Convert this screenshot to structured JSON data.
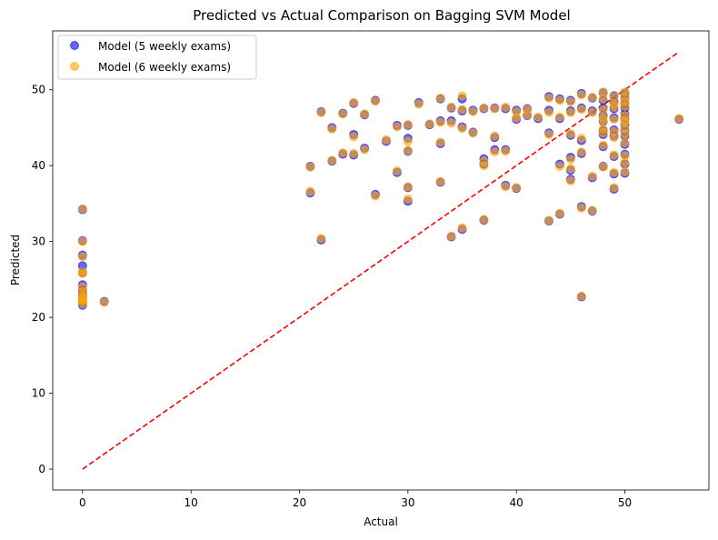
{
  "chart_data": {
    "type": "scatter",
    "title": "Predicted vs Actual Comparison on Bagging SVM Model",
    "xlabel": "Actual",
    "ylabel": "Predicted",
    "xlim": [
      -2.75,
      57.75
    ],
    "ylim": [
      -2.75,
      57.75
    ],
    "xticks": [
      0,
      10,
      20,
      30,
      40,
      50
    ],
    "yticks": [
      0,
      10,
      20,
      30,
      40,
      50
    ],
    "grid": false,
    "legend_position": "top-left",
    "reference_line": {
      "x": [
        0,
        55
      ],
      "y": [
        0,
        55
      ],
      "style": "dashed",
      "color": "#ff0000"
    },
    "series": [
      {
        "name": "Model (5 weekly exams)",
        "color": "#0000ff",
        "alpha": 0.6,
        "x": [
          0,
          0,
          0,
          0,
          0,
          0,
          0,
          0,
          0,
          0,
          0,
          0,
          2,
          21,
          21,
          22,
          22,
          23,
          23,
          24,
          24,
          25,
          25,
          25,
          26,
          26,
          27,
          27,
          28,
          29,
          29,
          30,
          30,
          30,
          30,
          30,
          31,
          32,
          33,
          33,
          33,
          33,
          34,
          34,
          34,
          35,
          35,
          35,
          35,
          36,
          36,
          37,
          37,
          37,
          37,
          38,
          38,
          38,
          39,
          39,
          39,
          40,
          40,
          40,
          41,
          41,
          42,
          43,
          43,
          43,
          43,
          44,
          44,
          44,
          44,
          45,
          45,
          45,
          45,
          45,
          45,
          46,
          46,
          46,
          46,
          46,
          46,
          47,
          47,
          47,
          47,
          48,
          48,
          48,
          48,
          48,
          48,
          48,
          48,
          48,
          49,
          49,
          49,
          49,
          49,
          49,
          49,
          49,
          49,
          50,
          50,
          50,
          50,
          50,
          50,
          50,
          50,
          50,
          50,
          50,
          50,
          50,
          55
        ],
        "y": [
          34.2,
          30.1,
          28.2,
          26.8,
          25.9,
          24.3,
          23.6,
          23.1,
          22.8,
          22.5,
          22.0,
          21.6,
          22.1,
          39.9,
          36.4,
          47.1,
          30.2,
          45.0,
          40.6,
          46.9,
          41.5,
          48.2,
          44.1,
          41.4,
          46.7,
          42.3,
          48.6,
          36.2,
          43.2,
          45.3,
          39.1,
          45.3,
          43.6,
          41.9,
          37.1,
          35.3,
          48.3,
          45.4,
          48.8,
          45.9,
          42.9,
          37.8,
          47.6,
          45.9,
          30.6,
          48.8,
          47.2,
          45.1,
          31.6,
          47.3,
          44.4,
          47.5,
          40.9,
          40.2,
          32.8,
          47.6,
          43.7,
          42.1,
          47.5,
          42.1,
          37.4,
          47.3,
          46.1,
          37.0,
          47.5,
          46.6,
          46.2,
          49.1,
          47.3,
          44.3,
          32.7,
          48.8,
          46.2,
          40.2,
          33.6,
          48.6,
          47.2,
          44.0,
          41.1,
          39.4,
          38.2,
          49.5,
          47.6,
          43.3,
          41.6,
          34.6,
          22.7,
          48.9,
          47.2,
          38.4,
          34.0,
          49.6,
          48.6,
          47.6,
          46.6,
          45.8,
          44.6,
          44.1,
          42.5,
          39.9,
          49.2,
          48.4,
          47.5,
          46.3,
          44.7,
          43.9,
          41.2,
          38.9,
          36.9,
          49.5,
          48.9,
          48.2,
          47.6,
          46.8,
          46.2,
          45.4,
          44.6,
          43.9,
          42.8,
          41.5,
          40.2,
          39.0,
          46.1
        ]
      },
      {
        "name": "Model (6 weekly exams)",
        "color": "#ffa500",
        "alpha": 0.6,
        "x": [
          0,
          0,
          0,
          0,
          0,
          0,
          0,
          0,
          0,
          0,
          0,
          0,
          2,
          21,
          21,
          22,
          22,
          23,
          23,
          24,
          24,
          25,
          25,
          25,
          26,
          26,
          27,
          27,
          28,
          29,
          29,
          30,
          30,
          30,
          30,
          30,
          31,
          32,
          33,
          33,
          33,
          33,
          34,
          34,
          34,
          35,
          35,
          35,
          35,
          36,
          36,
          37,
          37,
          37,
          37,
          38,
          38,
          38,
          39,
          39,
          39,
          40,
          40,
          40,
          41,
          41,
          42,
          43,
          43,
          43,
          43,
          44,
          44,
          44,
          44,
          45,
          45,
          45,
          45,
          45,
          45,
          46,
          46,
          46,
          46,
          46,
          46,
          47,
          47,
          47,
          47,
          48,
          48,
          48,
          48,
          48,
          48,
          48,
          48,
          48,
          49,
          49,
          49,
          49,
          49,
          49,
          49,
          49,
          49,
          50,
          50,
          50,
          50,
          50,
          50,
          50,
          50,
          50,
          50,
          50,
          50,
          50,
          55
        ],
        "y": [
          34.3,
          30.0,
          28.0,
          26.0,
          25.8,
          24.0,
          23.4,
          22.9,
          22.6,
          22.3,
          22.1,
          21.8,
          22.0,
          39.8,
          36.6,
          47.0,
          30.4,
          44.8,
          40.7,
          46.8,
          41.7,
          48.3,
          43.8,
          41.6,
          46.8,
          42.1,
          48.5,
          36.0,
          43.4,
          45.1,
          39.3,
          45.4,
          43.2,
          42.0,
          37.2,
          35.6,
          48.1,
          45.5,
          48.9,
          45.7,
          43.1,
          37.9,
          47.7,
          45.6,
          30.7,
          49.2,
          47.4,
          44.9,
          31.8,
          47.1,
          44.3,
          47.6,
          40.6,
          40.0,
          32.9,
          47.5,
          43.9,
          41.8,
          47.7,
          41.9,
          37.2,
          47.1,
          46.3,
          37.1,
          47.4,
          46.7,
          46.4,
          48.9,
          47.0,
          44.1,
          32.8,
          48.6,
          46.4,
          39.9,
          33.7,
          48.4,
          47.0,
          44.2,
          40.8,
          39.6,
          38.0,
          49.3,
          47.4,
          43.6,
          41.8,
          34.4,
          22.8,
          49.0,
          47.0,
          38.6,
          34.1,
          49.7,
          48.8,
          47.4,
          46.4,
          45.9,
          44.8,
          44.3,
          42.7,
          39.8,
          49.1,
          48.2,
          47.7,
          46.1,
          44.5,
          43.7,
          41.4,
          39.1,
          37.1,
          49.7,
          49.0,
          48.4,
          47.8,
          46.6,
          46.0,
          45.6,
          44.8,
          44.1,
          43.0,
          41.3,
          40.4,
          39.2,
          46.2
        ]
      }
    ]
  }
}
